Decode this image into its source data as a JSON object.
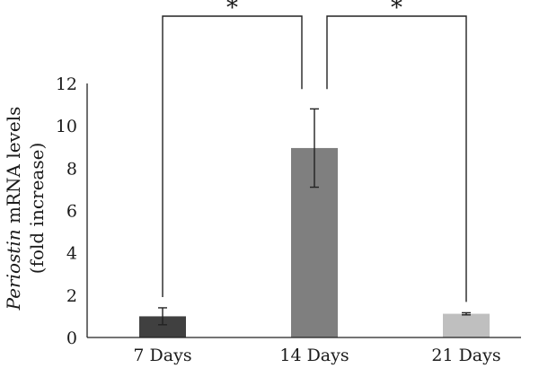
{
  "chart_data": {
    "type": "bar",
    "categories": [
      "7 Days",
      "14 Days",
      "21 Days"
    ],
    "values": [
      1.0,
      8.95,
      1.12
    ],
    "errors": [
      0.4,
      1.85,
      0.05
    ],
    "colors": [
      "#404040",
      "#7f7f7f",
      "#bfbfbf"
    ],
    "ylabel_italic": "Periostin",
    "ylabel_rest": " mRNA levels",
    "ylabel_line2": "(fold increase)",
    "ylim": [
      0,
      12
    ],
    "yticks": [
      0,
      2,
      4,
      6,
      8,
      10,
      12
    ],
    "grid": false,
    "significance": [
      {
        "from": 0,
        "to": 1,
        "label": "*"
      },
      {
        "from": 1,
        "to": 2,
        "label": "*"
      }
    ]
  }
}
